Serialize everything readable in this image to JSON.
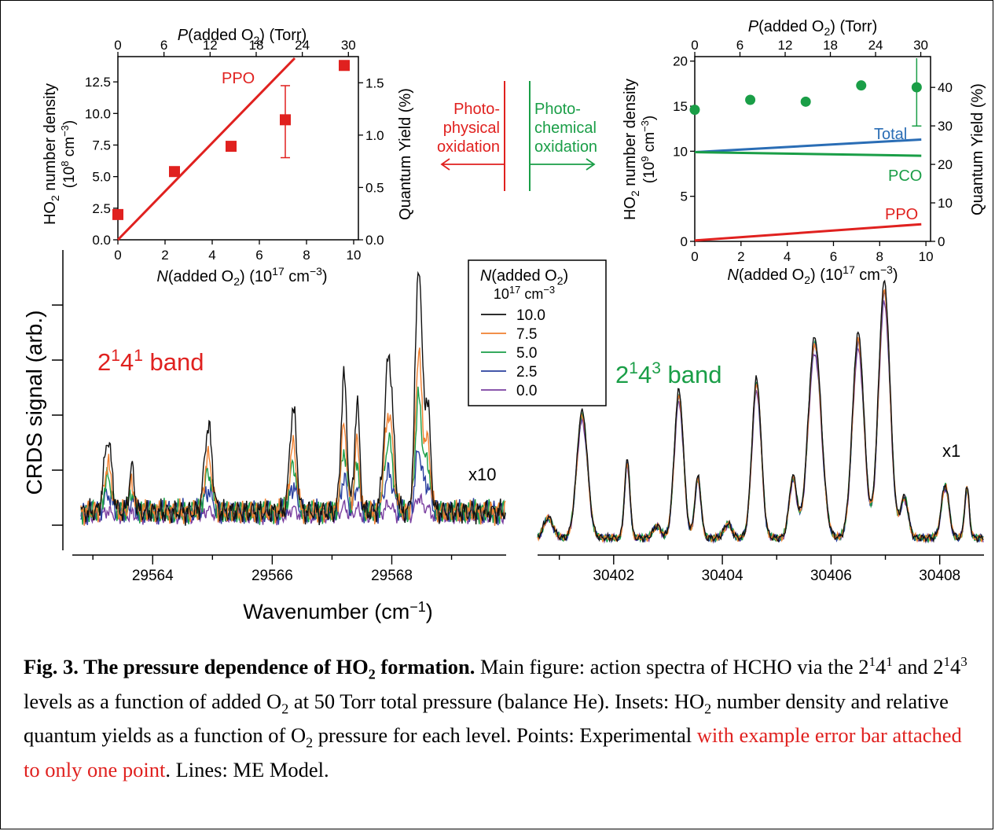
{
  "figure": {
    "colors": {
      "ppo": "#e0211f",
      "pco": "#1a9e47",
      "total": "#2a6db5",
      "black": "#111111"
    },
    "left_inset": {
      "top_axis_label_pre": "P",
      "top_axis_label_post": "(added O",
      "top_axis_label_sub": "2",
      "top_axis_label_end": ")  (Torr)",
      "top_ticks": [
        "0",
        "6",
        "12",
        "18",
        "24",
        "30"
      ],
      "y_ticks": [
        "0.0",
        "2.5",
        "5.0",
        "7.5",
        "10.0",
        "12.5"
      ],
      "y2_ticks": [
        "0.0",
        "0.5",
        "1.0",
        "1.5"
      ],
      "x_ticks": [
        "0",
        "2",
        "4",
        "6",
        "8",
        "10"
      ],
      "ylabel_1": "HO",
      "ylabel_1_sub": "2",
      "ylabel_1_end": " number density",
      "ylabel_2": "(10",
      "ylabel_2_sup": "8",
      "ylabel_2_end": " cm",
      "ylabel_2_sup2": "−3",
      "ylabel_2_close": ")",
      "y2label": "Quantum Yield (%)",
      "xlabel_pre": "N",
      "xlabel_mid": "(added O",
      "xlabel_sub": "2",
      "xlabel_end": ")  (10",
      "xlabel_sup": "17",
      "xlabel_unit": " cm",
      "xlabel_sup2": "−3",
      "xlabel_close": ")",
      "line_label": "PPO"
    },
    "right_inset": {
      "top_axis_label_pre": "P",
      "top_axis_label_post": "(added O",
      "top_axis_label_sub": "2",
      "top_axis_label_end": ")  (Torr)",
      "top_ticks": [
        "0",
        "6",
        "12",
        "18",
        "24",
        "30"
      ],
      "y_ticks": [
        "0",
        "5",
        "10",
        "15",
        "20"
      ],
      "y2_ticks": [
        "0",
        "10",
        "20",
        "30",
        "40"
      ],
      "x_ticks": [
        "0",
        "2",
        "4",
        "6",
        "8",
        "10"
      ],
      "ylabel_1": "HO",
      "ylabel_1_sub": "2",
      "ylabel_1_end": " number density",
      "ylabel_2": "(10",
      "ylabel_2_sup": "9",
      "ylabel_2_end": " cm",
      "ylabel_2_sup2": "−3",
      "ylabel_2_close": ")",
      "y2label": "Quantum Yield (%)",
      "xlabel_pre": "N",
      "xlabel_mid": "(added O",
      "xlabel_sub": "2",
      "xlabel_end": ")  (10",
      "xlabel_sup": "17",
      "xlabel_unit": " cm",
      "xlabel_sup2": "−3",
      "xlabel_close": ")",
      "label_total": "Total",
      "label_pco": "PCO",
      "label_ppo": "PPO"
    },
    "arrows": {
      "left_1": "Photo-",
      "left_2": "physical",
      "left_3": "oxidation",
      "right_1": "Photo-",
      "right_2": "chemical",
      "right_3": "oxidation"
    },
    "main": {
      "ylabel": "CRDS signal (arb.)",
      "xlabel_pre": "Wavenumber (cm",
      "xlabel_sup": "−1",
      "xlabel_close": ")",
      "left_ticks": [
        "29564",
        "29566",
        "29568"
      ],
      "right_ticks": [
        "30402",
        "30404",
        "30406",
        "30408"
      ],
      "band_left_base": "2",
      "band_left_sup1": "1",
      "band_left_mid": "4",
      "band_left_sup2": "1",
      "band_left_end": " band",
      "band_right_base": "2",
      "band_right_sup1": "1",
      "band_right_mid": "4",
      "band_right_sup2": "3",
      "band_right_end": " band",
      "scale_left": "x10",
      "scale_right": "x1"
    },
    "legend": {
      "title_pre": "N",
      "title_mid": "(added O",
      "title_sub": "2",
      "title_close": ")",
      "unit_pre": "10",
      "unit_sup": "17",
      "unit_mid": " cm",
      "unit_sup2": "−3",
      "entries": [
        {
          "label": "10.0",
          "color": "#111111"
        },
        {
          "label": "7.5",
          "color": "#f08030"
        },
        {
          "label": "5.0",
          "color": "#1a9e47"
        },
        {
          "label": "2.5",
          "color": "#2a3f9e"
        },
        {
          "label": "0.0",
          "color": "#7a3fa0"
        }
      ]
    }
  },
  "chart_data": [
    {
      "type": "scatter",
      "xlabel": "N(added O2) (10^17 cm^-3)",
      "ylabel": "HO2 number density (10^8 cm^-3)",
      "y2label": "Quantum Yield (%)",
      "x2label": "P(added O2) (Torr)",
      "xlim": [
        0,
        10.2
      ],
      "ylim": [
        0,
        14.5
      ],
      "y2lim": [
        0,
        1.75
      ],
      "x2lim": [
        0,
        31.3
      ],
      "series": [
        {
          "name": "PPO",
          "kind": "line",
          "x": [
            0,
            7.5
          ],
          "y": [
            0,
            15
          ]
        },
        {
          "kind": "points",
          "x": [
            0,
            2.4,
            4.8,
            7.1,
            9.6
          ],
          "y": [
            2.0,
            5.4,
            7.4,
            9.5,
            13.8
          ],
          "error": {
            "index": 3,
            "low": 6.5,
            "high": 12.2
          }
        }
      ]
    },
    {
      "type": "scatter",
      "xlabel": "N(added O2) (10^17 cm^-3)",
      "ylabel": "HO2 number density (10^9 cm^-3)",
      "y2label": "Quantum Yield (%)",
      "x2label": "P(added O2) (Torr)",
      "xlim": [
        0,
        10.2
      ],
      "ylim": [
        0,
        20.5
      ],
      "y2lim": [
        0,
        48
      ],
      "x2lim": [
        0,
        31.3
      ],
      "series": [
        {
          "name": "Total",
          "kind": "line",
          "x": [
            0,
            9.8
          ],
          "y": [
            9.9,
            11.3
          ]
        },
        {
          "name": "PCO",
          "kind": "line",
          "x": [
            0,
            9.8
          ],
          "y": [
            9.9,
            9.5
          ]
        },
        {
          "name": "PPO",
          "kind": "line",
          "x": [
            0,
            9.8
          ],
          "y": [
            0.1,
            1.9
          ]
        },
        {
          "kind": "points",
          "x": [
            0,
            2.4,
            4.8,
            7.2,
            9.6
          ],
          "y": [
            14.6,
            15.7,
            15.5,
            17.3,
            17.1
          ],
          "error": {
            "index": 4,
            "low": 12.8,
            "high": 20.6
          }
        }
      ]
    },
    {
      "type": "line",
      "xlabel": "Wavenumber (cm-1)",
      "ylabel": "CRDS signal (arb.)",
      "panels": [
        {
          "xlim": [
            29562.8,
            29569.9
          ],
          "ticks": [
            29564,
            29566,
            29568
          ],
          "peaks": [
            [
              29563.25,
              0.28,
              0.09
            ],
            [
              29563.65,
              0.17,
              0.06
            ],
            [
              29564.93,
              0.33,
              0.09
            ],
            [
              29566.35,
              0.4,
              0.08
            ],
            [
              29567.2,
              0.52,
              0.07
            ],
            [
              29567.42,
              0.42,
              0.06
            ],
            [
              29567.95,
              0.6,
              0.1
            ],
            [
              29568.45,
              0.95,
              0.08
            ],
            [
              29568.6,
              0.4,
              0.07
            ]
          ],
          "scales": [
            1.0,
            0.64,
            0.46,
            0.25,
            0.08
          ]
        },
        {
          "xlim": [
            30400.6,
            30408.8
          ],
          "ticks": [
            30402,
            30404,
            30406,
            30408
          ],
          "peaks": [
            [
              30400.8,
              0.1,
              0.12
            ],
            [
              30401.42,
              0.62,
              0.14
            ],
            [
              30402.25,
              0.38,
              0.07
            ],
            [
              30402.8,
              0.06,
              0.1
            ],
            [
              30403.2,
              0.72,
              0.12
            ],
            [
              30403.55,
              0.3,
              0.08
            ],
            [
              30404.1,
              0.07,
              0.1
            ],
            [
              30404.63,
              0.78,
              0.12
            ],
            [
              30405.3,
              0.3,
              0.1
            ],
            [
              30405.7,
              0.98,
              0.17
            ],
            [
              30406.5,
              1.0,
              0.15
            ],
            [
              30406.98,
              1.25,
              0.15
            ],
            [
              30407.35,
              0.2,
              0.1
            ],
            [
              30408.1,
              0.26,
              0.1
            ],
            [
              30408.5,
              0.25,
              0.06
            ]
          ],
          "scales": [
            1.0,
            0.97,
            0.98,
            0.96,
            0.92
          ]
        }
      ],
      "series": [
        {
          "name": "10.0"
        },
        {
          "name": "7.5"
        },
        {
          "name": "5.0"
        },
        {
          "name": "2.5"
        },
        {
          "name": "0.0"
        }
      ]
    }
  ],
  "caption": {
    "bold": "Fig. 3. The pressure dependence of HO",
    "bold_sub": "2",
    "bold_end": " formation.",
    "t1": " Main figure: action spectra of HCHO via the 2",
    "t1_sup1": "1",
    "t1_mid": "4",
    "t1_sup2": "1",
    "t1_and": " and 2",
    "t1_sup3": "1",
    "t1_mid2": "4",
    "t1_sup4": "3",
    "t2": " levels as a function of added O",
    "t2_sub": "2",
    "t3": " at 50 Torr total pressure (balance He). Insets: HO",
    "t3_sub": "2",
    "t4": " number density and relative quantum yields as a function of O",
    "t4_sub": "2",
    "t5": " pressure for each level. Points: Experimental ",
    "t5_red": "with example error bar attached to only one point",
    "t6": ".  Lines: ME Model."
  }
}
